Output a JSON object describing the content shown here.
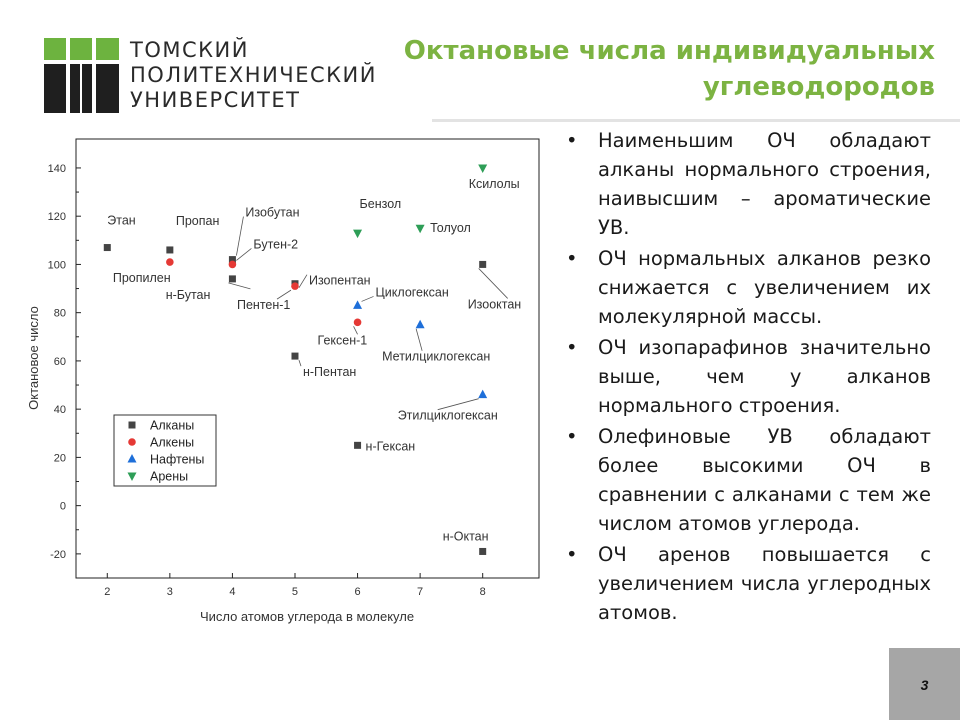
{
  "header": {
    "university_lines": [
      "ТОМСКИЙ",
      "ПОЛИТЕХНИЧЕСКИЙ",
      "УНИВЕРСИТЕТ"
    ],
    "title_lines": [
      "Октановые числа индивидуальных",
      "углеводородов"
    ],
    "title_color": "#7cb342",
    "logo_color": "#6db33f"
  },
  "bullets": [
    "Наименьшим ОЧ обладают алканы нормального строения, наивысшим – ароматические УВ.",
    "ОЧ нормальных алканов резко снижается с увеличением их молекулярной массы.",
    "ОЧ изопарафинов значительно выше, чем у алканов нормального строения.",
    "Олефиновые УВ обладают более высокими ОЧ в сравнении с алканами с тем же числом атомов углерода.",
    "ОЧ аренов повышается с увеличением числа углеродных атомов."
  ],
  "page_number": "3",
  "chart_data": {
    "type": "scatter",
    "xlabel": "Число атомов углерода в молекуле",
    "ylabel": "Октановое число",
    "xlim": [
      1.5,
      8.9
    ],
    "ylim": [
      -30,
      152
    ],
    "xticks": [
      2,
      3,
      4,
      5,
      6,
      7,
      8
    ],
    "yticks": [
      -20,
      0,
      20,
      40,
      60,
      80,
      100,
      120,
      140
    ],
    "legend_position": "lower-left",
    "series": [
      {
        "name": "Алканы",
        "marker": "square",
        "color": "#444444",
        "points": [
          {
            "x": 2,
            "y": 107,
            "label": "Этан"
          },
          {
            "x": 3,
            "y": 106,
            "label": "Пропан"
          },
          {
            "x": 4,
            "y": 102,
            "label": "Изобутан"
          },
          {
            "x": 4,
            "y": 94,
            "label": "н-Бутан"
          },
          {
            "x": 5,
            "y": 92,
            "label": "Изопентан"
          },
          {
            "x": 5,
            "y": 62,
            "label": "н-Пентан"
          },
          {
            "x": 6,
            "y": 25,
            "label": "н-Гексан"
          },
          {
            "x": 8,
            "y": 100,
            "label": "Изооктан"
          },
          {
            "x": 8,
            "y": -19,
            "label": "н-Октан"
          }
        ]
      },
      {
        "name": "Алкены",
        "marker": "circle",
        "color": "#e53935",
        "points": [
          {
            "x": 3,
            "y": 101,
            "label": "Пропилен"
          },
          {
            "x": 4,
            "y": 100,
            "label": "Бутен-2"
          },
          {
            "x": 5,
            "y": 91,
            "label": "Пентен-1"
          },
          {
            "x": 6,
            "y": 76,
            "label": "Гексен-1"
          }
        ]
      },
      {
        "name": "Нафтены",
        "marker": "triangle-up",
        "color": "#1e6fd9",
        "points": [
          {
            "x": 6,
            "y": 83,
            "label": "Циклогексан"
          },
          {
            "x": 7,
            "y": 75,
            "label": "Метилциклогексан"
          },
          {
            "x": 8,
            "y": 46,
            "label": "Этилциклогексан"
          }
        ]
      },
      {
        "name": "Арены",
        "marker": "triangle-down",
        "color": "#2e9e57",
        "points": [
          {
            "x": 6,
            "y": 113,
            "label": "Бензол"
          },
          {
            "x": 7,
            "y": 115,
            "label": "Толуол"
          },
          {
            "x": 8,
            "y": 140,
            "label": "Ксилолы"
          }
        ]
      }
    ]
  }
}
